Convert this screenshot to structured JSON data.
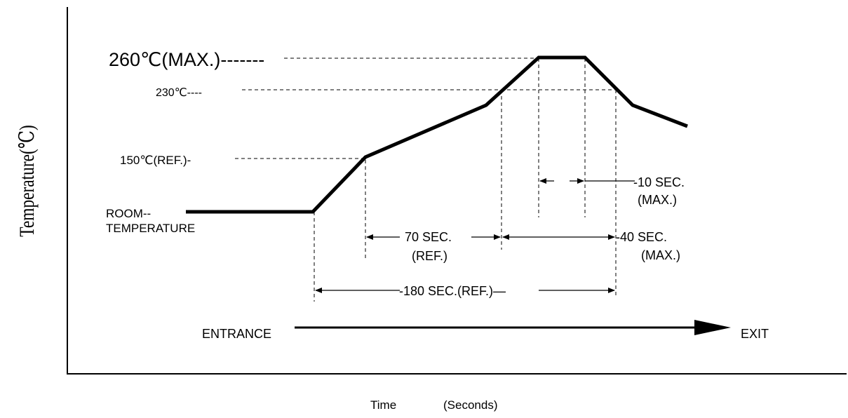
{
  "axes": {
    "y_label": "Temperature(℃)",
    "x_label_left": "Time",
    "x_label_right": "(Seconds)"
  },
  "temperature_labels": {
    "peak": "260℃(MAX.)-------",
    "t230": "230℃----",
    "t150": "150℃(REF.)-",
    "room_line1": "ROOM--",
    "room_line2": "TEMPERATURE"
  },
  "durations": {
    "d10_line1": "-10 SEC.",
    "d10_line2": "(MAX.)",
    "d70_line1": "70 SEC.",
    "d70_line2": "(REF.)",
    "d40_line1": "-40 SEC.",
    "d40_line2": "(MAX.)",
    "d180": "-180 SEC.(REF.)—"
  },
  "flow": {
    "entrance": "ENTRANCE",
    "exit": "EXIT"
  },
  "colors": {
    "line": "#000000",
    "background": "#ffffff"
  }
}
